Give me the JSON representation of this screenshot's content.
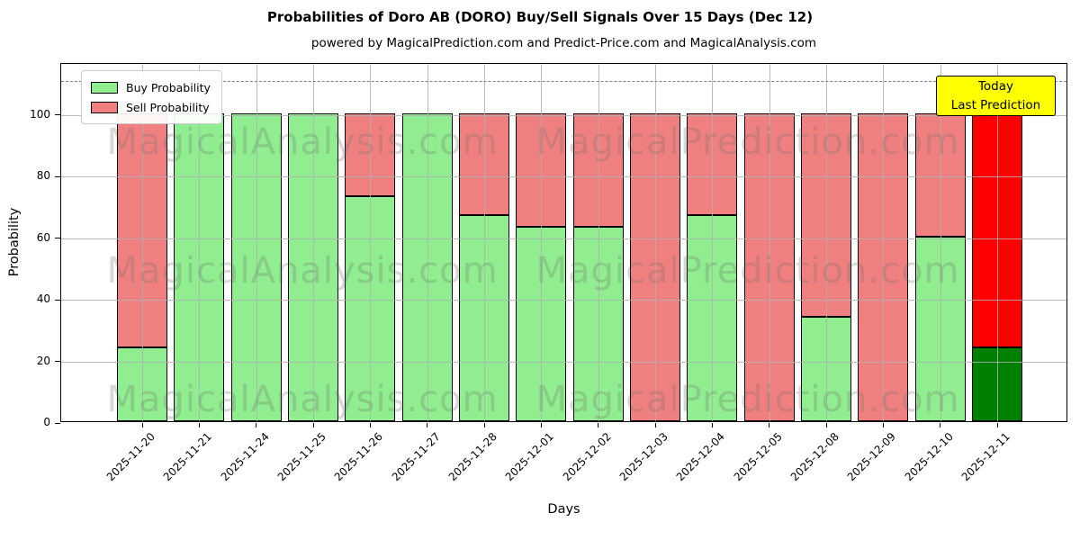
{
  "title": "Probabilities of Doro AB (DORO) Buy/Sell Signals Over 15 Days (Dec 12)",
  "subtitle": "powered by MagicalPrediction.com and Predict-Price.com and MagicalAnalysis.com",
  "legend": {
    "buy": "Buy Probability",
    "sell": "Sell Probability"
  },
  "axes": {
    "xlabel": "Days",
    "ylabel": "Probability",
    "yticks": [
      0,
      20,
      40,
      60,
      80,
      100
    ]
  },
  "annotation": {
    "line1": "Today",
    "line2": "Last Prediction"
  },
  "watermarks": [
    "MagicalAnalysis.com",
    "MagicalPrediction.com"
  ],
  "colors": {
    "buy": "#90ee90",
    "sell": "#f08080",
    "today_buy": "#008000",
    "today_sell": "#ff0000",
    "annotation_bg": "#ffff00",
    "grid": "rgba(176,176,176,0.85)",
    "dashed": "#7f7f7f",
    "watermark": "rgba(110,110,110,0.27)"
  },
  "chart_data": {
    "type": "bar",
    "stacked": true,
    "title": "Probabilities of Doro AB (DORO) Buy/Sell Signals Over 15 Days (Dec 12)",
    "xlabel": "Days",
    "ylabel": "Probability",
    "ylim": [
      0,
      116.5
    ],
    "grid": true,
    "legend_position": "upper left",
    "dashed_line_y": 111,
    "categories": [
      "2025-11-20",
      "2025-11-21",
      "2025-11-24",
      "2025-11-25",
      "2025-11-26",
      "2025-11-27",
      "2025-11-28",
      "2025-12-01",
      "2025-12-02",
      "2025-12-03",
      "2025-12-04",
      "2025-12-05",
      "2025-12-08",
      "2025-12-09",
      "2025-12-10",
      "2025-12-11"
    ],
    "series": [
      {
        "name": "Buy Probability",
        "values": [
          24,
          100,
          100,
          100,
          73,
          100,
          67,
          63,
          63,
          0,
          67,
          0,
          34,
          0,
          60,
          24
        ]
      },
      {
        "name": "Sell Probability",
        "values": [
          76,
          0,
          0,
          0,
          27,
          0,
          33,
          37,
          37,
          100,
          33,
          100,
          66,
          100,
          40,
          76
        ]
      }
    ],
    "today_index": 15
  }
}
